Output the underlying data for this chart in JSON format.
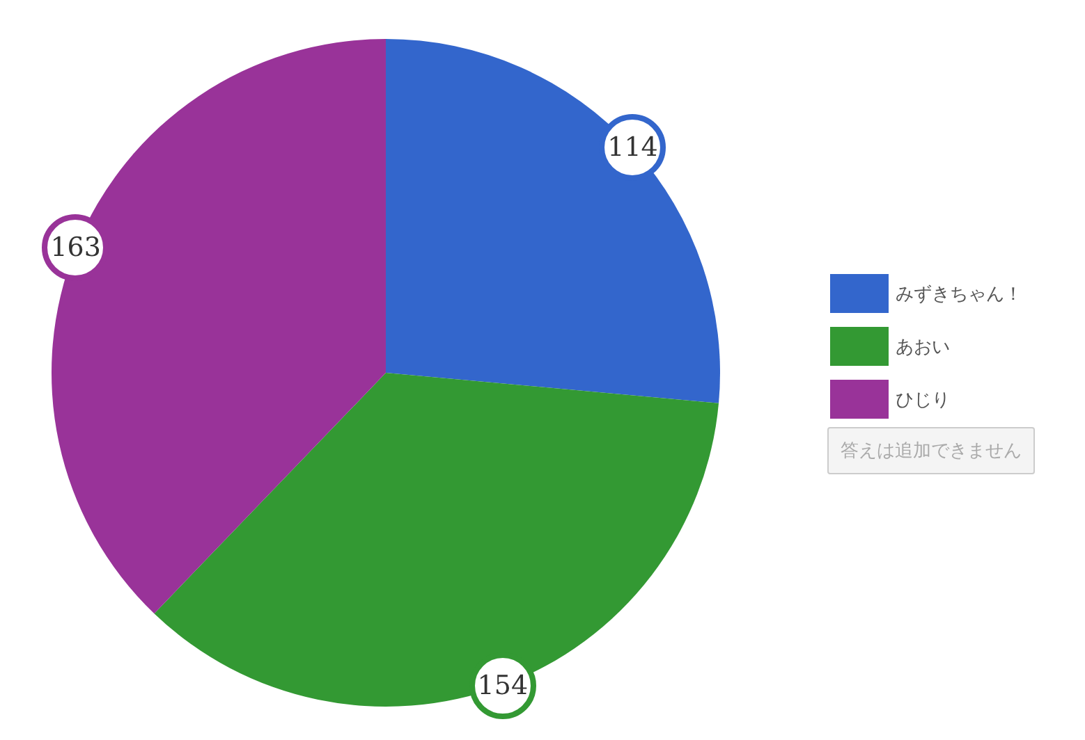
{
  "chart_data": {
    "type": "pie",
    "categories": [
      "みずきちゃん！",
      "あおい",
      "ひじり"
    ],
    "values": [
      114,
      154,
      163
    ],
    "colors": [
      "#3366cc",
      "#339933",
      "#993399"
    ],
    "data_labels": true,
    "legend": "right",
    "annotations": [
      "答えは追加できません"
    ]
  }
}
